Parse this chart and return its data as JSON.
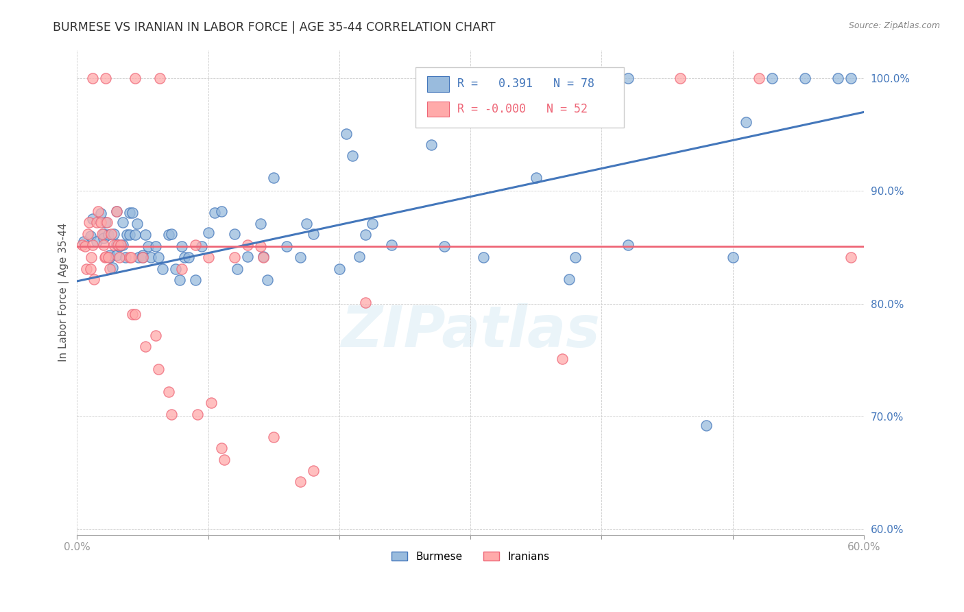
{
  "title": "BURMESE VS IRANIAN IN LABOR FORCE | AGE 35-44 CORRELATION CHART",
  "source": "Source: ZipAtlas.com",
  "ylabel": "In Labor Force | Age 35-44",
  "xlim": [
    0.0,
    0.6
  ],
  "ylim": [
    0.595,
    1.025
  ],
  "blue_color": "#99BBDD",
  "pink_color": "#FFAAAA",
  "blue_line_color": "#4477BB",
  "pink_line_color": "#EE6677",
  "watermark": "ZIPatlas",
  "legend_label_blue": "Burmese",
  "legend_label_pink": "Iranians",
  "blue_R": "0.391",
  "blue_N": "78",
  "pink_R": "-0.000",
  "pink_N": "52",
  "blue_line_x0": 0.0,
  "blue_line_y0": 0.82,
  "blue_line_x1": 0.6,
  "blue_line_y1": 0.97,
  "pink_line_y": 0.851,
  "blue_scatter_x": [
    0.005,
    0.01,
    0.012,
    0.015,
    0.018,
    0.02,
    0.02,
    0.022,
    0.024,
    0.025,
    0.025,
    0.027,
    0.028,
    0.03,
    0.03,
    0.03,
    0.032,
    0.033,
    0.035,
    0.035,
    0.037,
    0.038,
    0.04,
    0.04,
    0.042,
    0.044,
    0.046,
    0.047,
    0.05,
    0.05,
    0.052,
    0.054,
    0.056,
    0.06,
    0.062,
    0.065,
    0.07,
    0.072,
    0.075,
    0.078,
    0.08,
    0.082,
    0.085,
    0.09,
    0.095,
    0.1,
    0.105,
    0.11,
    0.12,
    0.122,
    0.13,
    0.14,
    0.142,
    0.145,
    0.15,
    0.16,
    0.17,
    0.175,
    0.18,
    0.2,
    0.205,
    0.21,
    0.215,
    0.22,
    0.225,
    0.24,
    0.27,
    0.28,
    0.31,
    0.35,
    0.375,
    0.38,
    0.42,
    0.48,
    0.5,
    0.51,
    0.58,
    0.59
  ],
  "blue_scatter_y": [
    0.855,
    0.86,
    0.875,
    0.855,
    0.88,
    0.862,
    0.858,
    0.872,
    0.861,
    0.841,
    0.843,
    0.832,
    0.862,
    0.853,
    0.882,
    0.843,
    0.851,
    0.852,
    0.852,
    0.872,
    0.841,
    0.861,
    0.861,
    0.881,
    0.881,
    0.861,
    0.871,
    0.841,
    0.843,
    0.841,
    0.861,
    0.851,
    0.841,
    0.851,
    0.841,
    0.831,
    0.861,
    0.862,
    0.831,
    0.821,
    0.851,
    0.841,
    0.841,
    0.821,
    0.851,
    0.863,
    0.881,
    0.882,
    0.862,
    0.831,
    0.842,
    0.871,
    0.842,
    0.821,
    0.912,
    0.851,
    0.841,
    0.871,
    0.862,
    0.831,
    0.951,
    0.931,
    0.842,
    0.861,
    0.871,
    0.852,
    0.941,
    0.851,
    0.841,
    0.912,
    0.822,
    0.841,
    0.852,
    0.692,
    0.841,
    0.961,
    1.0,
    1.0
  ],
  "pink_scatter_x": [
    0.004,
    0.006,
    0.007,
    0.008,
    0.009,
    0.01,
    0.011,
    0.012,
    0.013,
    0.015,
    0.016,
    0.018,
    0.019,
    0.02,
    0.021,
    0.022,
    0.023,
    0.024,
    0.025,
    0.026,
    0.028,
    0.03,
    0.031,
    0.032,
    0.033,
    0.04,
    0.041,
    0.042,
    0.044,
    0.05,
    0.052,
    0.06,
    0.062,
    0.07,
    0.072,
    0.08,
    0.09,
    0.092,
    0.1,
    0.102,
    0.11,
    0.112,
    0.12,
    0.13,
    0.14,
    0.142,
    0.15,
    0.17,
    0.18,
    0.22,
    0.37,
    0.59
  ],
  "pink_scatter_y": [
    0.852,
    0.851,
    0.831,
    0.862,
    0.872,
    0.831,
    0.841,
    0.852,
    0.822,
    0.872,
    0.882,
    0.872,
    0.862,
    0.852,
    0.841,
    0.842,
    0.872,
    0.841,
    0.831,
    0.862,
    0.852,
    0.882,
    0.852,
    0.841,
    0.852,
    0.841,
    0.841,
    0.791,
    0.791,
    0.841,
    0.762,
    0.772,
    0.742,
    0.722,
    0.702,
    0.831,
    0.852,
    0.702,
    0.841,
    0.712,
    0.672,
    0.662,
    0.841,
    0.852,
    0.851,
    0.841,
    0.682,
    0.642,
    0.652,
    0.801,
    0.751,
    0.841
  ],
  "top_blue_x": [
    0.36,
    0.375,
    0.39,
    0.42,
    0.53,
    0.555
  ],
  "top_blue_y": [
    1.0,
    1.0,
    1.0,
    1.0,
    1.0,
    1.0
  ],
  "top_pink_x": [
    0.012,
    0.022,
    0.044,
    0.063,
    0.46,
    0.52
  ],
  "top_pink_y": [
    1.0,
    1.0,
    1.0,
    1.0,
    1.0,
    1.0
  ]
}
